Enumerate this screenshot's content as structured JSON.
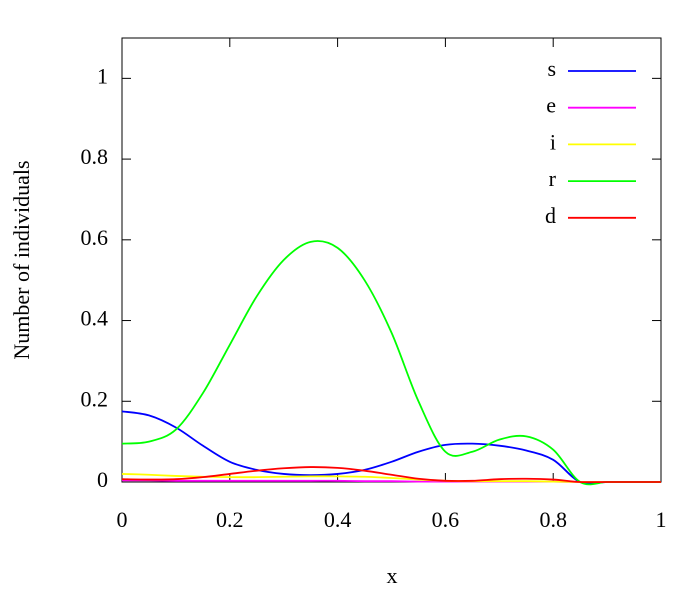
{
  "chart_data": {
    "type": "line",
    "xlabel": "x",
    "ylabel": "Number of individuals",
    "x": [
      0,
      0.05,
      0.1,
      0.15,
      0.2,
      0.25,
      0.3,
      0.35,
      0.4,
      0.45,
      0.5,
      0.55,
      0.6,
      0.65,
      0.7,
      0.75,
      0.8,
      0.85,
      0.9,
      0.95,
      1
    ],
    "series": [
      {
        "name": "s",
        "color": "#0000ff",
        "values": [
          0.175,
          0.165,
          0.135,
          0.09,
          0.05,
          0.03,
          0.02,
          0.017,
          0.02,
          0.03,
          0.05,
          0.075,
          0.092,
          0.095,
          0.09,
          0.078,
          0.055,
          0,
          0,
          0,
          0
        ]
      },
      {
        "name": "e",
        "color": "#ff00ff",
        "values": [
          0.004,
          0.004,
          0.003,
          0.003,
          0.003,
          0.003,
          0.003,
          0.003,
          0.003,
          0.002,
          0.002,
          0.001,
          0.001,
          0.001,
          0.001,
          0.001,
          0.001,
          0,
          0,
          0,
          0
        ]
      },
      {
        "name": "i",
        "color": "#ffff00",
        "values": [
          0.02,
          0.018,
          0.015,
          0.013,
          0.012,
          0.012,
          0.013,
          0.014,
          0.014,
          0.013,
          0.01,
          0.006,
          0.003,
          0.002,
          0.002,
          0.002,
          0.001,
          0,
          0,
          0,
          0
        ]
      },
      {
        "name": "r",
        "color": "#00ff00",
        "values": [
          0.095,
          0.1,
          0.13,
          0.22,
          0.34,
          0.46,
          0.55,
          0.595,
          0.58,
          0.5,
          0.37,
          0.2,
          0.075,
          0.075,
          0.105,
          0.113,
          0.08,
          0,
          0,
          0,
          0
        ]
      },
      {
        "name": "d",
        "color": "#ff0000",
        "values": [
          0.007,
          0.006,
          0.007,
          0.012,
          0.02,
          0.028,
          0.034,
          0.037,
          0.035,
          0.028,
          0.018,
          0.008,
          0.003,
          0.003,
          0.007,
          0.008,
          0.006,
          0,
          0,
          0,
          0
        ]
      }
    ],
    "xlim": [
      0,
      1
    ],
    "xticks": [
      0,
      0.2,
      0.4,
      0.6,
      0.8,
      1
    ],
    "ylim": [
      0,
      1.1
    ],
    "yticks": [
      0,
      0.2,
      0.4,
      0.6,
      0.8,
      1
    ],
    "legend": "top-right"
  }
}
